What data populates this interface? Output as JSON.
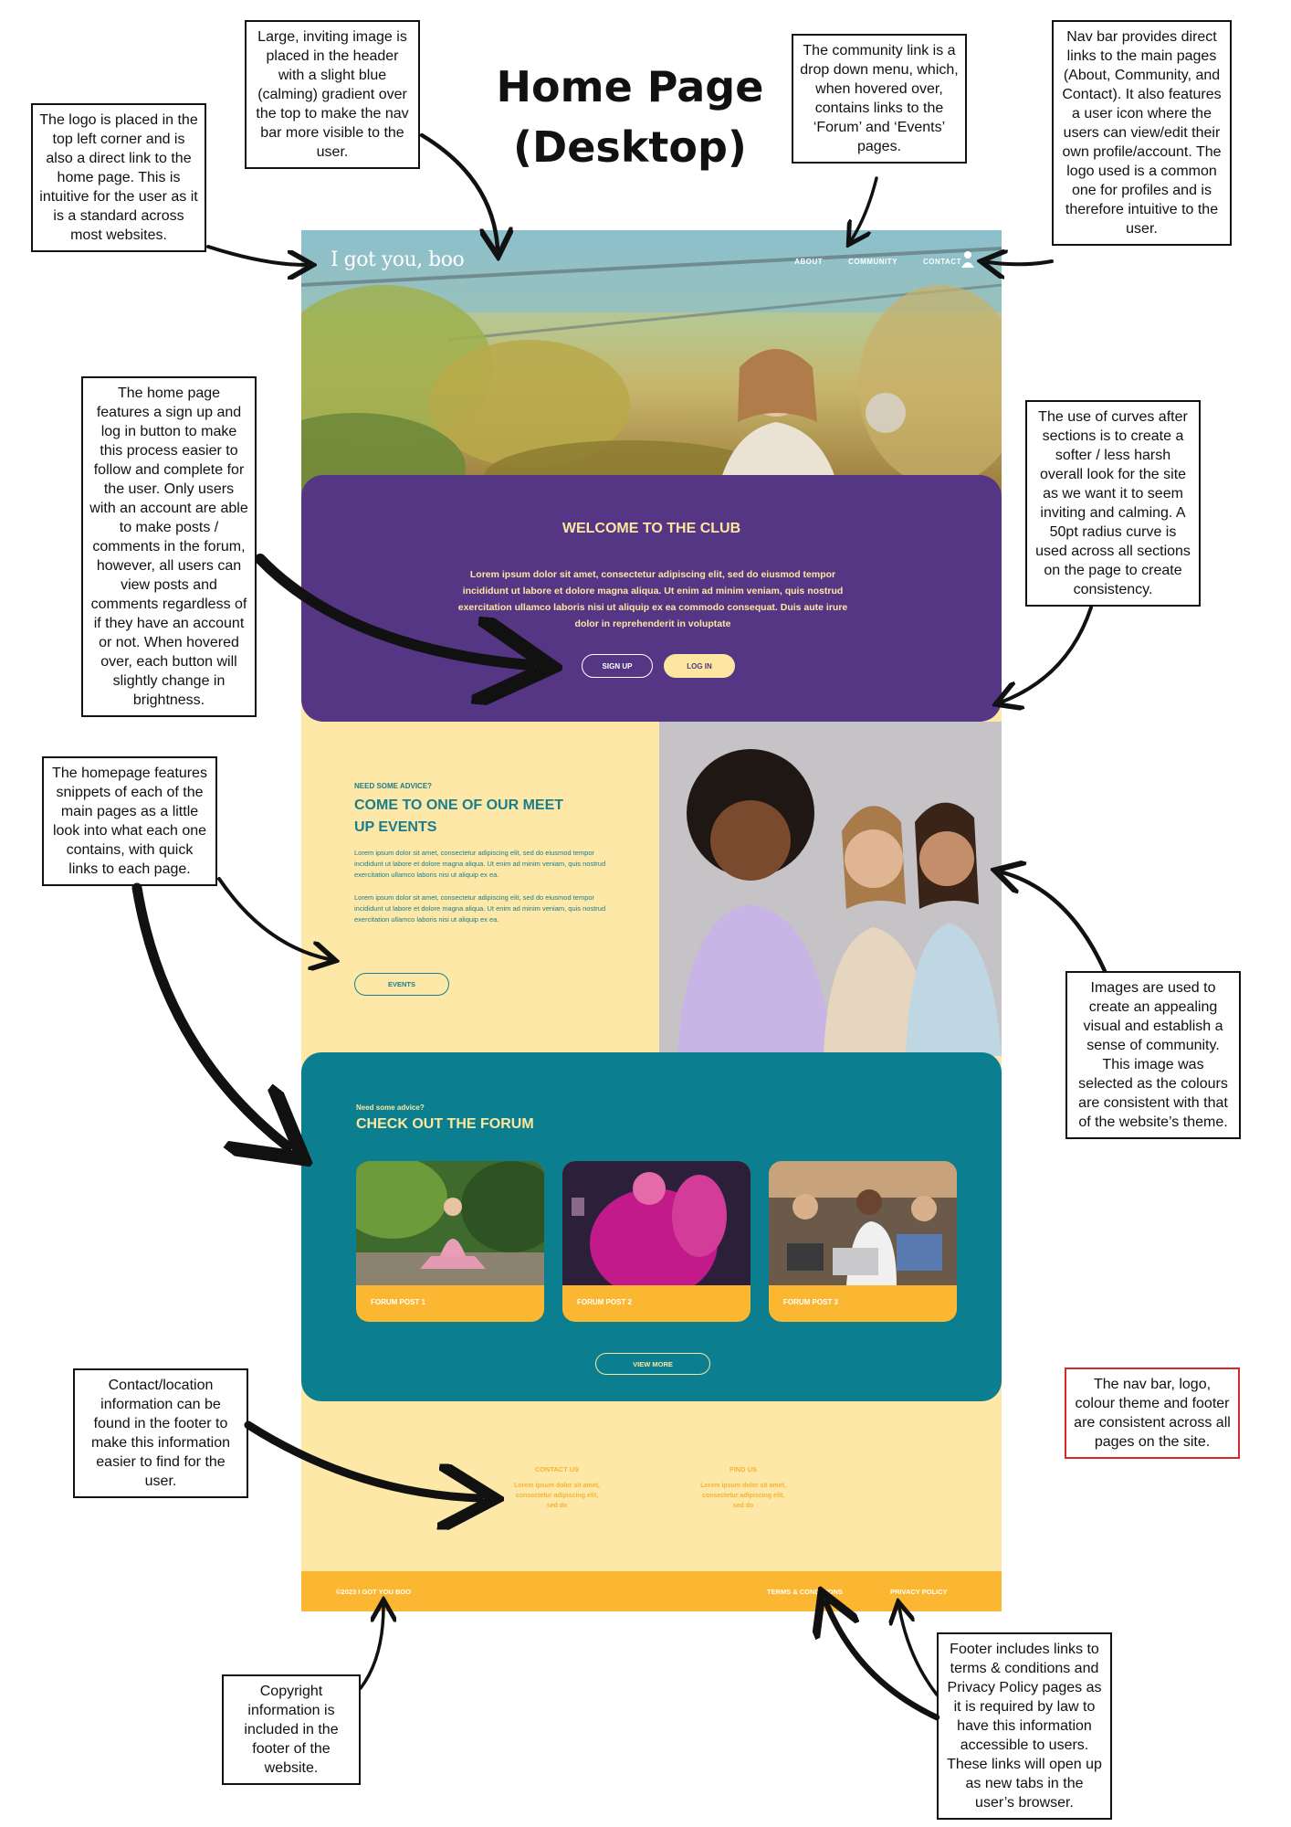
{
  "title_line1": "Home Page",
  "title_line2": "(Desktop)",
  "annotations": {
    "logo": "The logo is placed in the top left corner and is also a direct link to the home page. This is intuitive for the user as it is a standard across most websites.",
    "image": "Large, inviting image is placed in the header with a slight blue (calming) gradient over the top to make the nav bar more visible to the user.",
    "community": "The community link is a drop down menu, which, when hovered over, contains links to the ‘Forum’ and ‘Events’ pages.",
    "navbar": "Nav bar provides direct links to the main pages (About, Community, and Contact). It also features a user icon where the users can view/edit their own profile/account. The logo used is a common one for profiles and is therefore intuitive to the user.",
    "signup": "The home page features a sign up and log in button to make this process easier to follow and complete for the user. Only users with an account are able to make posts / comments in the forum, however, all users can view posts and comments regardless of if they have an account or not. When hovered over, each button will slightly change in brightness.",
    "curves": "The use of curves after sections is to create a softer / less harsh overall look for the site as we want it to seem inviting and calming. A 50pt radius curve is used across all sections on the page to create consistency.",
    "snippets": "The homepage features snippets of each of the main pages as a little look into what each one contains, with quick links to each page.",
    "images": "Images are used to create an appealing visual and establish a sense of community. This image was selected as the colours are consistent with that of the website’s theme.",
    "contact": "Contact/location information can be found in the footer to make this information easier to find for the user.",
    "consistent": "The nav bar, logo, colour theme and footer are consistent across all pages on the site.",
    "copyright": "Copyright information is included in the footer of the website.",
    "footer_links": "Footer includes links to terms & conditions and Privacy Policy pages as it is required by law to have this information accessible to users. These links will open up as new tabs in the user’s browser."
  },
  "site": {
    "logo": "I got you, boo",
    "nav": [
      "ABOUT",
      "COMMUNITY",
      "CONTACT"
    ],
    "welcome_title": "WELCOME TO THE CLUB",
    "welcome_body": "Lorem ipsum dolor sit amet, consectetur adipiscing elit, sed do eiusmod tempor incididunt ut labore et dolore magna aliqua. Ut enim ad minim veniam, quis nostrud exercitation ullamco laboris nisi ut aliquip ex ea commodo consequat. Duis aute irure dolor in reprehenderit in voluptate",
    "signup": "SIGN UP",
    "login": "LOG IN",
    "events_kicker": "NEED SOME ADVICE?",
    "events_title": "COME TO ONE OF OUR MEET UP EVENTS",
    "events_body_1": "Lorem ipsum dolor sit amet, consectetur adipiscing elit, sed do eiusmod tempor incididunt ut labore et dolore magna aliqua. Ut enim ad minim veniam, quis nostrud exercitation ullamco laboris nisi ut aliquip ex ea.",
    "events_body_2": "Lorem ipsum dolor sit amet, consectetur adipiscing elit, sed do eiusmod tempor incididunt ut labore et dolore magna aliqua. Ut enim ad minim veniam, quis nostrud exercitation ullamco laboris nisi ut aliquip ex ea.",
    "events_button": "EVENTS",
    "forum_kicker": "Need some advice?",
    "forum_title": "CHECK OUT THE FORUM",
    "forum_posts": [
      "FORUM POST 1",
      "FORUM POST 2",
      "FORUM POST 3"
    ],
    "view_more": "VIEW MORE",
    "contact_heading": "CONTACT US",
    "contact_body": "Lorem ipsum dolor sit amet, consectetur adipiscing elit, sed do",
    "find_heading": "FIND US",
    "find_body": "Lorem ipsum dolor sit amet, consectetur adipiscing elit, sed do",
    "copyright": "©2023   I GOT YOU BOO",
    "terms": "TERMS & CONDITIONS",
    "privacy": "PRIVACY POLICY"
  },
  "colors": {
    "purple": "#553685",
    "cream": "#fde8a8",
    "teal": "#0b7f8f",
    "orange": "#fbb731"
  }
}
